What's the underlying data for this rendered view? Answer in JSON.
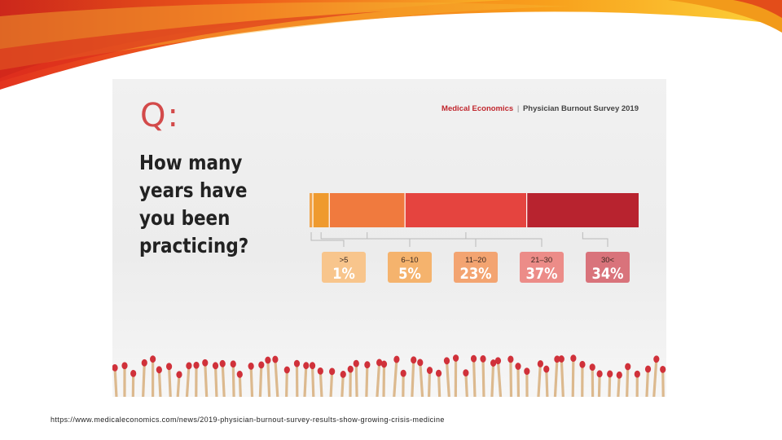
{
  "slide": {
    "source_url": "https://www.medicaleconomics.com/news/2019-physician-burnout-survey-results-show-growing-crisis-medicine"
  },
  "panel": {
    "q_mark": "Q:",
    "brand_publication": "Medical Economics",
    "brand_separator": "|",
    "brand_survey": "Physician Burnout Survey 2019",
    "question": "How many years have you been practicing?"
  },
  "chart_data": {
    "type": "bar",
    "orientation": "horizontal-stacked",
    "title": "How many years have you been practicing?",
    "categories": [
      ">5",
      "6–10",
      "11–20",
      "21–30",
      "30<"
    ],
    "values": [
      1,
      5,
      23,
      37,
      34
    ],
    "value_labels": [
      "1%",
      "5%",
      "23%",
      "37%",
      "34%"
    ],
    "unit": "%",
    "colors": [
      "#f0a34a",
      "#ef9a2e",
      "#f07a3e",
      "#e5443f",
      "#b8232f"
    ],
    "label_box_colors": [
      "#f8c58c",
      "#f5b36d",
      "#f3a471",
      "#ec8c88",
      "#d9737b"
    ],
    "legend": "none",
    "grid": false
  },
  "colors": {
    "brand_red": "#c0262d",
    "question_text": "#222222",
    "match_head": "#d0313a",
    "match_stick": "#dcb98e"
  }
}
